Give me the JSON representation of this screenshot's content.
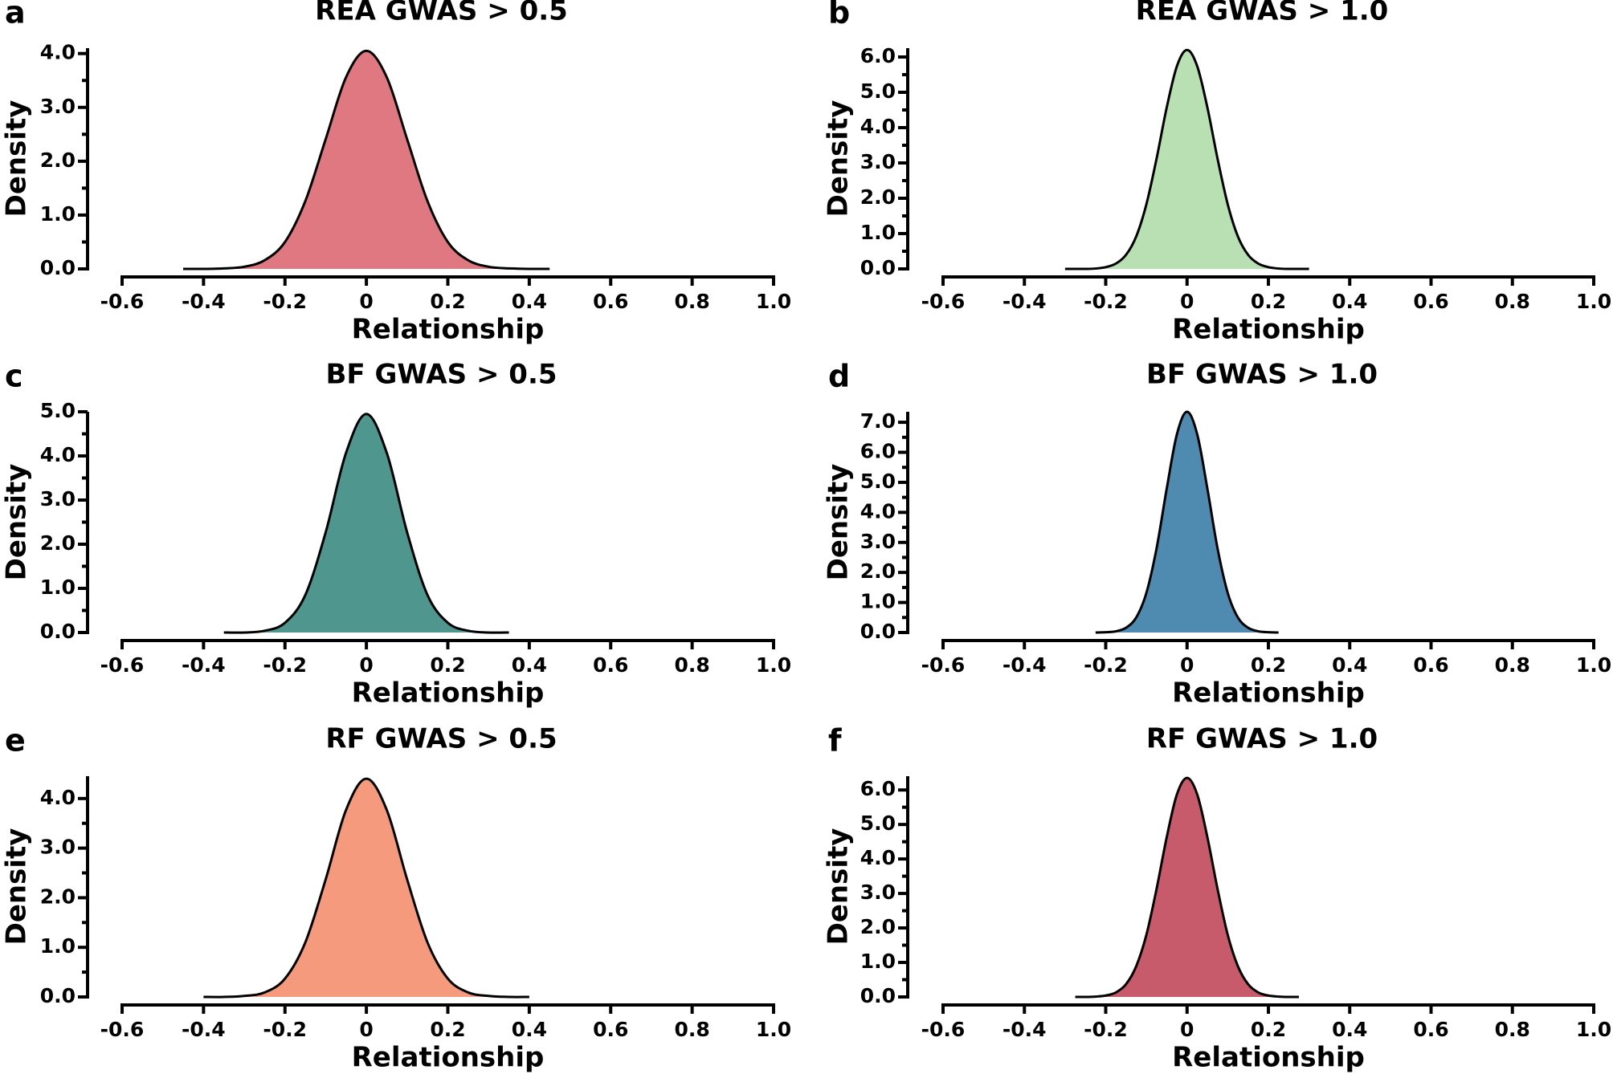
{
  "chart_data": [
    {
      "type": "area",
      "panel_label": "a",
      "title": "REA GWAS > 0.5",
      "xlabel": "Relationship",
      "ylabel": "Density",
      "color": "#e07882",
      "x": [
        -0.45,
        -0.4,
        -0.35,
        -0.3,
        -0.25,
        -0.2,
        -0.15,
        -0.1,
        -0.05,
        0,
        0.05,
        0.1,
        0.15,
        0.2,
        0.25,
        0.3,
        0.35,
        0.4,
        0.45
      ],
      "values": [
        0,
        0,
        0.01,
        0.04,
        0.16,
        0.5,
        1.26,
        2.41,
        3.56,
        4.05,
        3.56,
        2.41,
        1.26,
        0.5,
        0.16,
        0.04,
        0.01,
        0,
        0
      ],
      "xlim": [
        -0.6,
        1.0
      ],
      "xticks": [
        -0.6,
        -0.4,
        -0.2,
        0,
        0.2,
        0.4,
        0.6,
        0.8,
        {
          "value": 1,
          "label": "1.0"
        }
      ],
      "ylim": [
        0,
        4.1
      ],
      "yticks": [
        {
          "value": 0,
          "label": "0.0"
        },
        {
          "value": 1,
          "label": "1.0"
        },
        {
          "value": 2,
          "label": "2.0"
        },
        {
          "value": 3,
          "label": "3.0"
        },
        {
          "value": 4,
          "label": "4.0"
        }
      ],
      "yticks_minor": [
        0.5,
        1.5,
        2.5,
        3.5
      ]
    },
    {
      "type": "area",
      "panel_label": "b",
      "title": "REA GWAS > 1.0",
      "xlabel": "Relationship",
      "ylabel": "Density",
      "color": "#b8e0b2",
      "x": [
        -0.3,
        -0.275,
        -0.25,
        -0.225,
        -0.2,
        -0.175,
        -0.15,
        -0.125,
        -0.1,
        -0.075,
        -0.05,
        -0.025,
        0,
        0.025,
        0.05,
        0.075,
        0.1,
        0.125,
        0.15,
        0.175,
        0.2,
        0.225,
        0.25,
        0.275,
        0.3
      ],
      "values": [
        0,
        0,
        0,
        0.01,
        0.05,
        0.15,
        0.4,
        0.92,
        1.83,
        3.12,
        4.57,
        5.74,
        6.2,
        5.74,
        4.57,
        3.12,
        1.83,
        0.92,
        0.4,
        0.15,
        0.05,
        0.01,
        0,
        0,
        0
      ],
      "xlim": [
        -0.6,
        1.0
      ],
      "xticks": [
        -0.6,
        -0.4,
        -0.2,
        0,
        0.2,
        0.4,
        0.6,
        0.8,
        {
          "value": 1,
          "label": "1.0"
        }
      ],
      "ylim": [
        0,
        6.25
      ],
      "yticks": [
        {
          "value": 0,
          "label": "0.0"
        },
        {
          "value": 1,
          "label": "1.0"
        },
        {
          "value": 2,
          "label": "2.0"
        },
        {
          "value": 3,
          "label": "3.0"
        },
        {
          "value": 4,
          "label": "4.0"
        },
        {
          "value": 5,
          "label": "5.0"
        },
        {
          "value": 6,
          "label": "6.0"
        }
      ],
      "yticks_minor": [
        0.5,
        1.5,
        2.5,
        3.5,
        4.5,
        5.5
      ]
    },
    {
      "type": "area",
      "panel_label": "c",
      "title": "BF GWAS > 0.5",
      "xlabel": "Relationship",
      "ylabel": "Density",
      "color": "#4e968e",
      "x": [
        -0.35,
        -0.3,
        -0.25,
        -0.2,
        -0.15,
        -0.1,
        -0.05,
        0,
        0.05,
        0.1,
        0.15,
        0.2,
        0.25,
        0.3,
        0.35
      ],
      "values": [
        0,
        0,
        0.04,
        0.22,
        0.85,
        2.27,
        4.07,
        4.95,
        4.07,
        2.27,
        0.85,
        0.22,
        0.04,
        0,
        0
      ],
      "xlim": [
        -0.6,
        1.0
      ],
      "xticks": [
        -0.6,
        -0.4,
        -0.2,
        0,
        0.2,
        0.4,
        0.6,
        0.8,
        {
          "value": 1,
          "label": "1.0"
        }
      ],
      "ylim": [
        0,
        5.0
      ],
      "yticks": [
        {
          "value": 0,
          "label": "0.0"
        },
        {
          "value": 1,
          "label": "1.0"
        },
        {
          "value": 2,
          "label": "2.0"
        },
        {
          "value": 3,
          "label": "3.0"
        },
        {
          "value": 4,
          "label": "4.0"
        },
        {
          "value": 5,
          "label": "5.0"
        }
      ],
      "yticks_minor": [
        0.5,
        1.5,
        2.5,
        3.5,
        4.5
      ]
    },
    {
      "type": "area",
      "panel_label": "d",
      "title": "BF GWAS > 1.0",
      "xlabel": "Relationship",
      "ylabel": "Density",
      "color": "#4f8ab0",
      "x": [
        -0.225,
        -0.2,
        -0.175,
        -0.15,
        -0.125,
        -0.1,
        -0.075,
        -0.05,
        -0.025,
        0,
        0.025,
        0.05,
        0.075,
        0.1,
        0.125,
        0.15,
        0.175,
        0.2,
        0.225
      ],
      "values": [
        0,
        0.01,
        0.04,
        0.16,
        0.5,
        1.32,
        2.8,
        4.79,
        6.6,
        7.35,
        6.6,
        4.79,
        2.8,
        1.32,
        0.5,
        0.16,
        0.04,
        0.01,
        0
      ],
      "xlim": [
        -0.6,
        1.0
      ],
      "xticks": [
        -0.6,
        -0.4,
        -0.2,
        0,
        0.2,
        0.4,
        0.6,
        0.8,
        {
          "value": 1,
          "label": "1.0"
        }
      ],
      "ylim": [
        0,
        7.35
      ],
      "yticks": [
        {
          "value": 0,
          "label": "0.0"
        },
        {
          "value": 1,
          "label": "1.0"
        },
        {
          "value": 2,
          "label": "2.0"
        },
        {
          "value": 3,
          "label": "3.0"
        },
        {
          "value": 4,
          "label": "4.0"
        },
        {
          "value": 5,
          "label": "5.0"
        },
        {
          "value": 6,
          "label": "6.0"
        },
        {
          "value": 7,
          "label": "7.0"
        }
      ],
      "yticks_minor": [
        0.5,
        1.5,
        2.5,
        3.5,
        4.5,
        5.5,
        6.5
      ]
    },
    {
      "type": "area",
      "panel_label": "e",
      "title": "RF GWAS > 0.5",
      "xlabel": "Relationship",
      "ylabel": "Density",
      "color": "#f59a7d",
      "x": [
        -0.4,
        -0.35,
        -0.3,
        -0.25,
        -0.2,
        -0.15,
        -0.1,
        -0.05,
        0,
        0.05,
        0.1,
        0.15,
        0.2,
        0.25,
        0.3,
        0.35,
        0.4
      ],
      "values": [
        0,
        0,
        0.02,
        0.09,
        0.37,
        1.1,
        2.37,
        3.77,
        4.4,
        3.77,
        2.37,
        1.1,
        0.37,
        0.09,
        0.02,
        0,
        0
      ],
      "xlim": [
        -0.6,
        1.0
      ],
      "xticks": [
        -0.6,
        -0.4,
        -0.2,
        0,
        0.2,
        0.4,
        0.6,
        0.8,
        {
          "value": 1,
          "label": "1.0"
        }
      ],
      "ylim": [
        0,
        4.45
      ],
      "yticks": [
        {
          "value": 0,
          "label": "0.0"
        },
        {
          "value": 1,
          "label": "1.0"
        },
        {
          "value": 2,
          "label": "2.0"
        },
        {
          "value": 3,
          "label": "3.0"
        },
        {
          "value": 4,
          "label": "4.0"
        }
      ],
      "yticks_minor": [
        0.5,
        1.5,
        2.5,
        3.5
      ]
    },
    {
      "type": "area",
      "panel_label": "f",
      "title": "RF GWAS > 1.0",
      "xlabel": "Relationship",
      "ylabel": "Density",
      "color": "#c75b6c",
      "x": [
        -0.275,
        -0.25,
        -0.225,
        -0.2,
        -0.175,
        -0.15,
        -0.125,
        -0.1,
        -0.075,
        -0.05,
        -0.025,
        0,
        0.025,
        0.05,
        0.075,
        0.1,
        0.125,
        0.15,
        0.175,
        0.2,
        0.225,
        0.25,
        0.275
      ],
      "values": [
        0,
        0,
        0.01,
        0.04,
        0.13,
        0.37,
        0.89,
        1.8,
        3.13,
        4.63,
        5.87,
        6.35,
        5.87,
        4.63,
        3.13,
        1.8,
        0.89,
        0.37,
        0.13,
        0.04,
        0.01,
        0,
        0
      ],
      "xlim": [
        -0.6,
        1.0
      ],
      "xticks": [
        -0.6,
        -0.4,
        -0.2,
        0,
        0.2,
        0.4,
        0.6,
        0.8,
        {
          "value": 1,
          "label": "1.0"
        }
      ],
      "ylim": [
        0,
        6.4
      ],
      "yticks": [
        {
          "value": 0,
          "label": "0.0"
        },
        {
          "value": 1,
          "label": "1.0"
        },
        {
          "value": 2,
          "label": "2.0"
        },
        {
          "value": 3,
          "label": "3.0"
        },
        {
          "value": 4,
          "label": "4.0"
        },
        {
          "value": 5,
          "label": "5.0"
        },
        {
          "value": 6,
          "label": "6.0"
        }
      ],
      "yticks_minor": [
        0.5,
        1.5,
        2.5,
        3.5,
        4.5,
        5.5
      ]
    }
  ]
}
